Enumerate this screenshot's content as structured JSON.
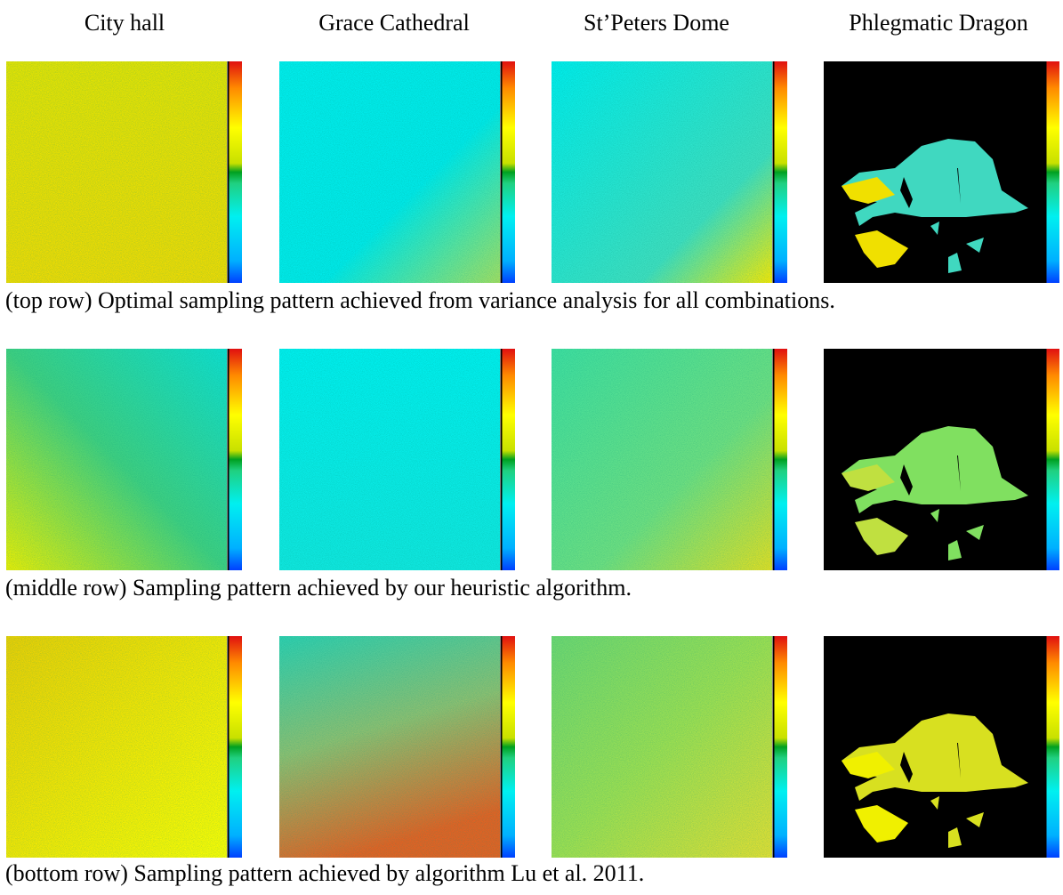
{
  "columns": [
    "City hall",
    "Grace Cathedral",
    "St’Peters Dome",
    "Phlegmatic Dragon"
  ],
  "rows": [
    {
      "caption": "(top row) Optimal sampling pattern achieved from variance analysis for all combinations."
    },
    {
      "caption": "(middle row) Sampling pattern achieved by our heuristic algorithm."
    },
    {
      "caption": "(bottom row) Sampling pattern achieved by algorithm Lu et al. 2011."
    }
  ]
}
